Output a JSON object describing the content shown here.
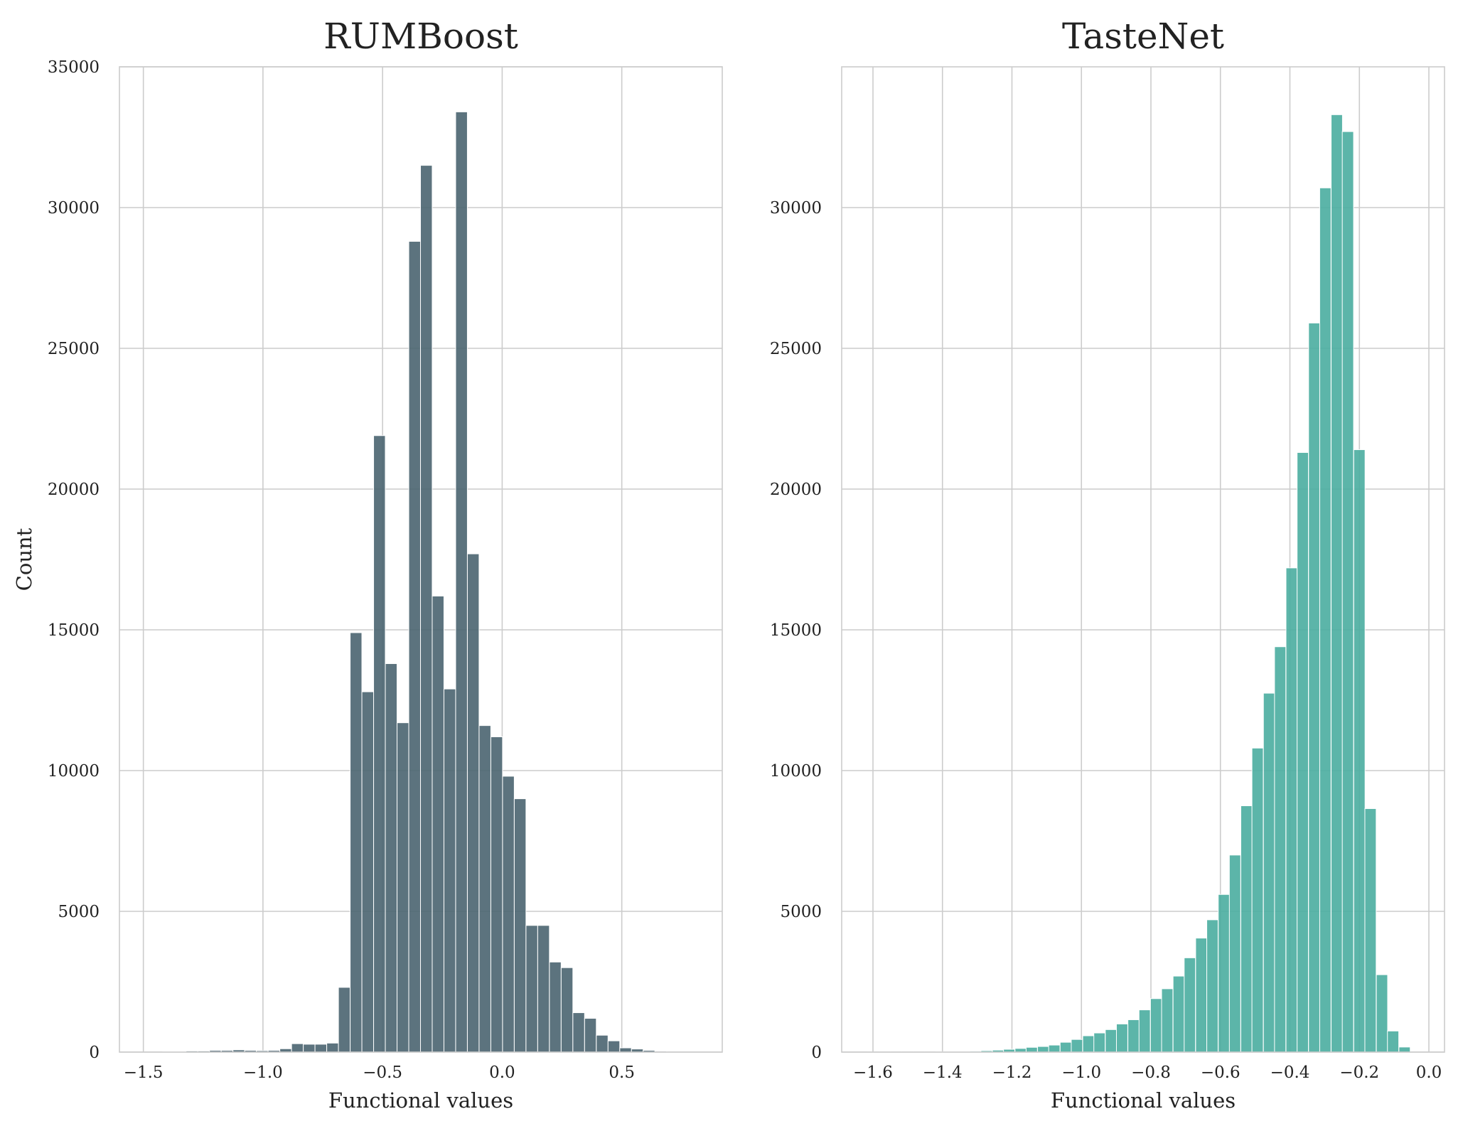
{
  "chart_data": [
    {
      "type": "bar",
      "subtype": "histogram",
      "title": "RUMBoost",
      "xlabel": "Functional values",
      "ylabel": "Count",
      "color": "#4a6470",
      "xlim": [
        -1.6,
        0.92
      ],
      "ylim": [
        0,
        35000
      ],
      "xticks": [
        -1.5,
        -1.0,
        -0.5,
        0.0,
        0.5
      ],
      "xtick_labels": [
        "−1.5",
        "−1.0",
        "−0.5",
        "0.0",
        "0.5"
      ],
      "yticks": [
        0,
        5000,
        10000,
        15000,
        20000,
        25000,
        30000,
        35000
      ],
      "ytick_labels": [
        "0",
        "5000",
        "10000",
        "15000",
        "20000",
        "25000",
        "30000",
        "35000"
      ],
      "grid": true,
      "bin_width": 0.0489,
      "x": [
        -1.395,
        -1.346,
        -1.297,
        -1.248,
        -1.199,
        -1.15,
        -1.101,
        -1.052,
        -1.003,
        -0.954,
        -0.905,
        -0.856,
        -0.807,
        -0.758,
        -0.709,
        -0.66,
        -0.611,
        -0.562,
        -0.513,
        -0.464,
        -0.415,
        -0.366,
        -0.317,
        -0.268,
        -0.219,
        -0.17,
        -0.121,
        -0.072,
        -0.023,
        0.026,
        0.075,
        0.124,
        0.173,
        0.222,
        0.271,
        0.32,
        0.369,
        0.418,
        0.467,
        0.516,
        0.565,
        0.614,
        0.663
      ],
      "values": [
        10,
        20,
        40,
        40,
        60,
        60,
        80,
        60,
        50,
        60,
        120,
        300,
        280,
        280,
        320,
        2300,
        14900,
        12800,
        21900,
        13800,
        11700,
        28800,
        31500,
        16200,
        12900,
        33400,
        17700,
        11600,
        11200,
        9800,
        9000,
        4500,
        4500,
        3200,
        3000,
        1400,
        1200,
        600,
        400,
        150,
        110,
        60,
        30
      ]
    },
    {
      "type": "bar",
      "subtype": "histogram",
      "title": "TasteNet",
      "xlabel": "Functional values",
      "ylabel": "",
      "color": "#4aada0",
      "xlim": [
        -1.69,
        0.045
      ],
      "ylim": [
        0,
        35000
      ],
      "xticks": [
        -1.6,
        -1.4,
        -1.2,
        -1.0,
        -0.8,
        -0.6,
        -0.4,
        -0.2,
        0.0
      ],
      "xtick_labels": [
        "−1.6",
        "−1.4",
        "−1.2",
        "−1.0",
        "−0.8",
        "−0.6",
        "−0.4",
        "−0.2",
        "0.0"
      ],
      "yticks": [
        0,
        5000,
        10000,
        15000,
        20000,
        25000,
        30000
      ],
      "ytick_labels": [
        "0",
        "5000",
        "10000",
        "15000",
        "20000",
        "25000",
        "30000"
      ],
      "grid": true,
      "bin_width": 0.0325,
      "x": [
        -1.598,
        -1.565,
        -1.533,
        -1.5,
        -1.468,
        -1.435,
        -1.403,
        -1.37,
        -1.338,
        -1.305,
        -1.273,
        -1.24,
        -1.208,
        -1.175,
        -1.143,
        -1.11,
        -1.078,
        -1.045,
        -1.013,
        -0.98,
        -0.948,
        -0.915,
        -0.883,
        -0.85,
        -0.818,
        -0.785,
        -0.753,
        -0.72,
        -0.688,
        -0.655,
        -0.623,
        -0.59,
        -0.558,
        -0.525,
        -0.493,
        -0.46,
        -0.428,
        -0.395,
        -0.363,
        -0.33,
        -0.298,
        -0.265,
        -0.233,
        -0.2,
        -0.168,
        -0.135,
        -0.103,
        -0.07
      ],
      "values": [
        5,
        5,
        5,
        5,
        5,
        5,
        10,
        15,
        20,
        30,
        50,
        70,
        100,
        130,
        170,
        200,
        250,
        350,
        450,
        580,
        680,
        800,
        1000,
        1150,
        1500,
        1900,
        2250,
        2700,
        3350,
        4050,
        4700,
        5600,
        7000,
        8750,
        10800,
        12750,
        14400,
        17200,
        21300,
        25900,
        30700,
        33300,
        32700,
        21400,
        8650,
        2750,
        750,
        180
      ]
    }
  ]
}
